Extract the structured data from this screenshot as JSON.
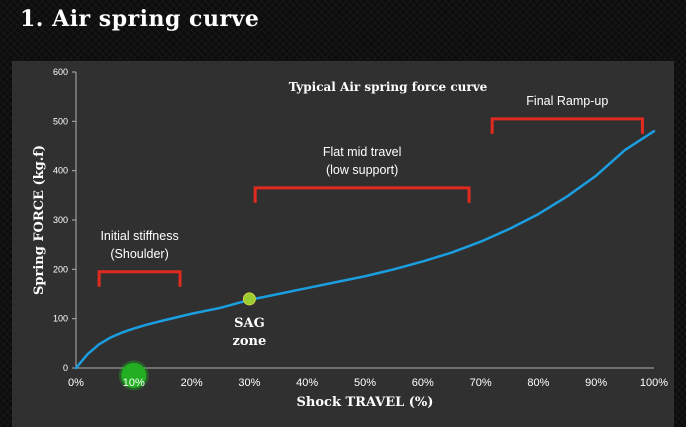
{
  "slide": {
    "title": "1. Air spring curve"
  },
  "chart_data": {
    "type": "line",
    "title": "Typical Air spring force curve",
    "xlabel": "Shock TRAVEL (%)",
    "ylabel": "Spring FORCE (kg.f)",
    "xlim": [
      0,
      100
    ],
    "ylim": [
      0,
      600
    ],
    "x_ticks": [
      "0%",
      "10%",
      "20%",
      "30%",
      "40%",
      "50%",
      "60%",
      "70%",
      "80%",
      "90%",
      "100%"
    ],
    "y_ticks": [
      "0",
      "100",
      "200",
      "300",
      "400",
      "500",
      "600"
    ],
    "grid": false,
    "series": [
      {
        "color": "#1b9ee0",
        "x": [
          0,
          2,
          4,
          6,
          8,
          10,
          12,
          15,
          20,
          25,
          30,
          35,
          40,
          45,
          50,
          55,
          60,
          65,
          70,
          75,
          80,
          85,
          90,
          95,
          100
        ],
        "y": [
          0,
          28,
          48,
          62,
          72,
          80,
          87,
          96,
          110,
          122,
          138,
          150,
          162,
          174,
          186,
          200,
          216,
          234,
          256,
          282,
          312,
          348,
          390,
          442,
          480
        ]
      }
    ],
    "brackets": [
      {
        "label_lines": [
          "Initial stiffness",
          "(Shoulder)"
        ],
        "x_from": 4,
        "x_to": 18,
        "y": 195,
        "color": "#e02a20"
      },
      {
        "label_lines": [
          "Flat mid travel",
          "(low support)"
        ],
        "x_from": 31,
        "x_to": 68,
        "y": 365,
        "color": "#e02a20"
      },
      {
        "label_lines": [
          "Final Ramp-up"
        ],
        "x_from": 72,
        "x_to": 98,
        "y": 505,
        "color": "#e02a20"
      }
    ],
    "markers": [
      {
        "x": 30,
        "y": 140,
        "color": "#9acd32",
        "label_lines": [
          "SAG",
          "zone"
        ]
      },
      {
        "x": 10,
        "y": -15,
        "color": "#22b022"
      }
    ]
  }
}
